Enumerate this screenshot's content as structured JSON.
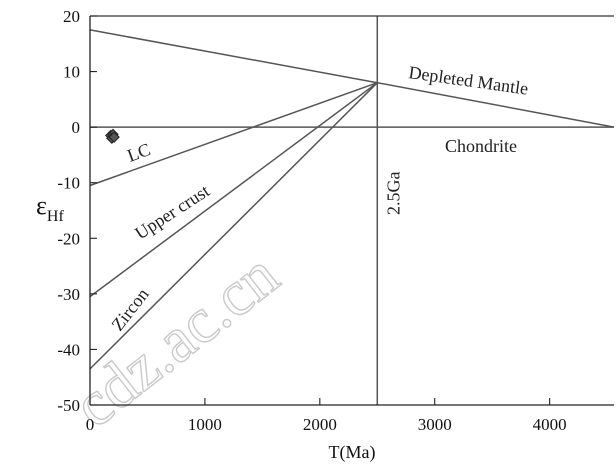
{
  "chart_data": {
    "type": "line",
    "xlabel": "T(Ma)",
    "ylabel_main": "ε",
    "ylabel_sub": "Hf",
    "xlim": [
      0,
      4560
    ],
    "ylim": [
      -50,
      20
    ],
    "x_ticks": [
      1000,
      2000,
      3000,
      4000
    ],
    "x_tick_labels": [
      "1000",
      "2000",
      "3000",
      "4000"
    ],
    "extra_x_label": "0",
    "y_ticks": [
      -50,
      -40,
      -30,
      -20,
      -10,
      0,
      10,
      20
    ],
    "y_tick_labels": [
      "-50",
      "-40",
      "-30",
      "-20",
      "-10",
      "0",
      "10",
      "20"
    ],
    "series": [
      {
        "name": "Depleted Mantle",
        "points": [
          [
            0,
            17.5
          ],
          [
            2500,
            8
          ],
          [
            4560,
            0
          ]
        ]
      },
      {
        "name": "Chondrite",
        "points": [
          [
            0,
            0
          ],
          [
            4560,
            0
          ]
        ]
      },
      {
        "name": "LC",
        "points": [
          [
            0,
            -10.5
          ],
          [
            2500,
            8
          ]
        ]
      },
      {
        "name": "Upper crust",
        "points": [
          [
            0,
            -30.5
          ],
          [
            2500,
            8
          ]
        ]
      },
      {
        "name": "Zircon",
        "points": [
          [
            0,
            -43.5
          ],
          [
            2500,
            8
          ]
        ]
      }
    ],
    "reference_line": {
      "label": "2.5Ga",
      "x": 2500
    },
    "samples": {
      "x": [
        180,
        200,
        190,
        210
      ],
      "y": [
        -1.5,
        -1.3,
        -2.0,
        -1.8
      ]
    }
  },
  "watermark": {
    "text": "cdz.ac.cn"
  }
}
